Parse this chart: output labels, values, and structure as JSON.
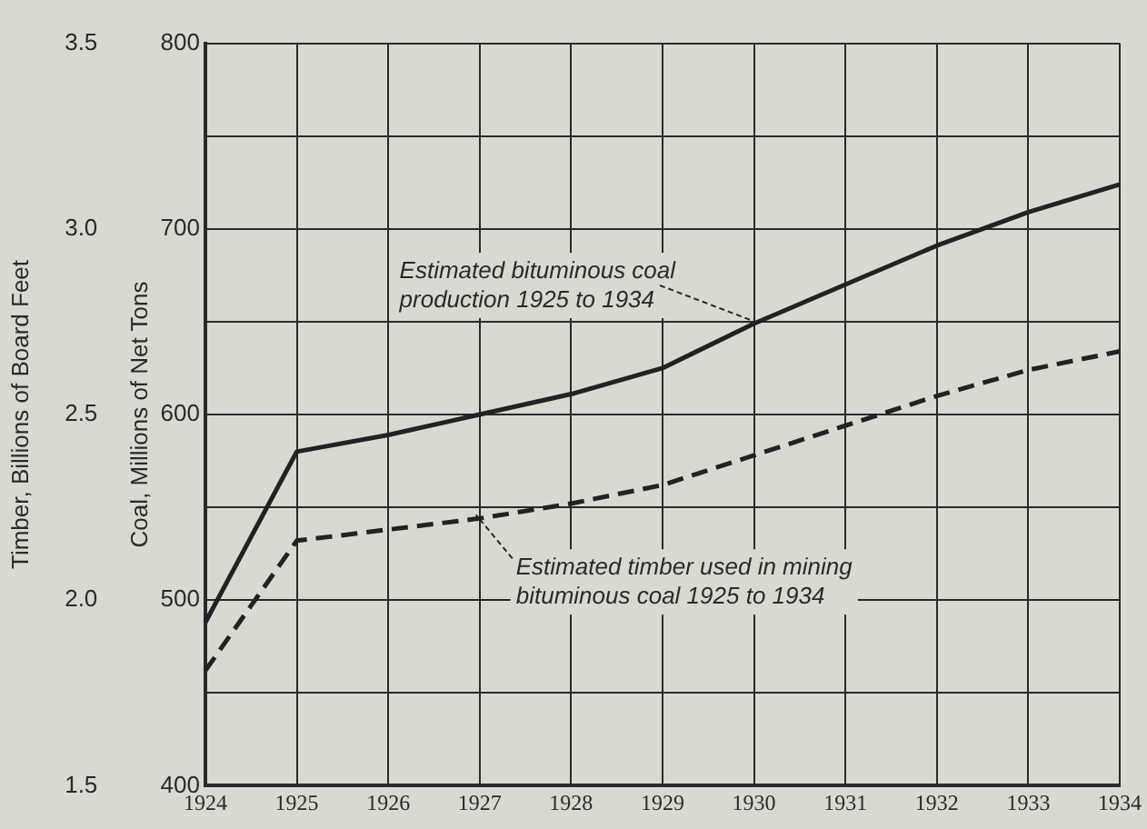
{
  "chart_data": {
    "type": "line",
    "ylabel": "Timber, Billions of Board Feet",
    "y2label": "Coal, Millions of Net Tons",
    "categories": [
      "1924",
      "1925",
      "1926",
      "1927",
      "1928",
      "1929",
      "1930",
      "1931",
      "1932",
      "1933",
      "1934"
    ],
    "series": [
      {
        "color": "#222222",
        "line_style": "solid",
        "axis": "y2",
        "values": [
          488,
          580,
          589,
          600,
          611,
          625,
          649,
          670,
          691,
          709,
          724
        ]
      },
      {
        "color": "#222222",
        "line_style": "dashed",
        "values": [
          1.81,
          2.16,
          2.19,
          2.22,
          2.26,
          2.31,
          2.39,
          2.47,
          2.55,
          2.62,
          2.67
        ]
      }
    ],
    "y2lim": [
      400,
      800
    ],
    "y2ticks": [
      400,
      {
        "value": 450,
        "label": null
      },
      500,
      {
        "value": 550,
        "label": null
      },
      600,
      {
        "value": 650,
        "label": null
      },
      700,
      {
        "value": 750,
        "label": null
      },
      800
    ],
    "ylim": [
      1.5,
      3.5
    ],
    "yticks": [
      1.5,
      {
        "value": 2,
        "label": "2.0"
      },
      2.5,
      {
        "value": 3,
        "label": "3.0"
      },
      3.5
    ],
    "grid": true,
    "legend": false,
    "marker": "none",
    "annotations": [
      {
        "text": "Estimated bituminous coal production 1925 to 1934",
        "x": "1930",
        "y": 2.745
      },
      {
        "text": "Estimated timber used in mining bituminous coal 1925 to 1934",
        "x": "1927",
        "y": 2.22
      }
    ]
  }
}
